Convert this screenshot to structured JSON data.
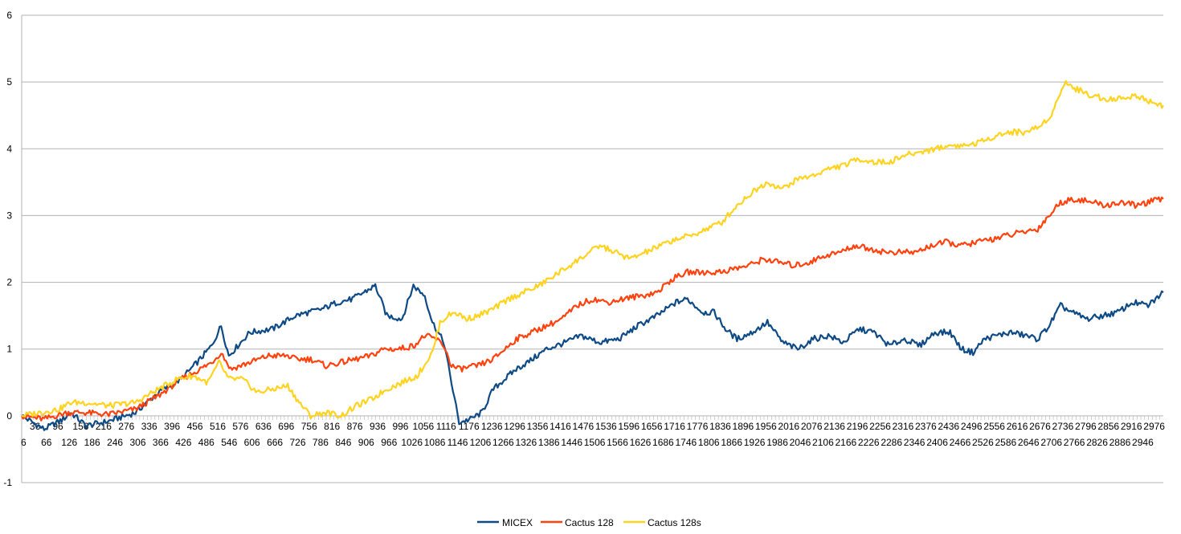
{
  "chart_data": {
    "type": "line",
    "title": "",
    "xlabel": "",
    "ylabel": "",
    "ylim": [
      -1,
      6
    ],
    "yticks": [
      "-1",
      "0",
      "1",
      "2",
      "3",
      "4",
      "5",
      "6"
    ],
    "grid": "horizontal",
    "legend_position": "bottom",
    "x_tick_labels_row1": [
      "36",
      "96",
      "156",
      "216",
      "276",
      "336",
      "396",
      "456",
      "516",
      "576",
      "636",
      "696",
      "756",
      "816",
      "876",
      "936",
      "996",
      "1056",
      "1116",
      "1176",
      "1236",
      "1296",
      "1356",
      "1416",
      "1476",
      "1536",
      "1596",
      "1656",
      "1716",
      "1776",
      "1836",
      "1896",
      "1956",
      "2016",
      "2076",
      "2136",
      "2196",
      "2256",
      "2316",
      "2376",
      "2436",
      "2496",
      "2556",
      "2616",
      "2676",
      "2736",
      "2796",
      "2856",
      "2916",
      "2976"
    ],
    "x_tick_labels_row2": [
      "6",
      "66",
      "126",
      "186",
      "246",
      "306",
      "366",
      "426",
      "486",
      "546",
      "606",
      "666",
      "726",
      "786",
      "846",
      "906",
      "966",
      "1026",
      "1086",
      "1146",
      "1206",
      "1266",
      "1326",
      "1386",
      "1446",
      "1506",
      "1566",
      "1626",
      "1686",
      "1746",
      "1806",
      "1866",
      "1926",
      "1986",
      "2046",
      "2106",
      "2166",
      "2226",
      "2286",
      "2346",
      "2406",
      "2466",
      "2526",
      "2586",
      "2646",
      "2706",
      "2766",
      "2826",
      "2886",
      "2946"
    ],
    "x_range": [
      1,
      3000
    ],
    "series": [
      {
        "name": "MICEX",
        "color": "#0e4a86",
        "points": [
          [
            1,
            0
          ],
          [
            60,
            -0.2
          ],
          [
            110,
            -0.05
          ],
          [
            130,
            0.05
          ],
          [
            170,
            -0.15
          ],
          [
            230,
            -0.08
          ],
          [
            300,
            0.05
          ],
          [
            360,
            0.35
          ],
          [
            420,
            0.55
          ],
          [
            470,
            0.85
          ],
          [
            500,
            1.05
          ],
          [
            525,
            1.35
          ],
          [
            545,
            0.9
          ],
          [
            600,
            1.25
          ],
          [
            660,
            1.3
          ],
          [
            720,
            1.5
          ],
          [
            790,
            1.6
          ],
          [
            830,
            1.7
          ],
          [
            870,
            1.75
          ],
          [
            900,
            1.85
          ],
          [
            930,
            1.95
          ],
          [
            960,
            1.5
          ],
          [
            1000,
            1.45
          ],
          [
            1030,
            1.95
          ],
          [
            1060,
            1.8
          ],
          [
            1080,
            1.4
          ],
          [
            1110,
            1.1
          ],
          [
            1130,
            0.5
          ],
          [
            1150,
            -0.1
          ],
          [
            1180,
            -0.05
          ],
          [
            1210,
            0.05
          ],
          [
            1240,
            0.4
          ],
          [
            1270,
            0.55
          ],
          [
            1300,
            0.7
          ],
          [
            1330,
            0.8
          ],
          [
            1380,
            1.0
          ],
          [
            1430,
            1.1
          ],
          [
            1470,
            1.2
          ],
          [
            1520,
            1.1
          ],
          [
            1570,
            1.15
          ],
          [
            1620,
            1.35
          ],
          [
            1670,
            1.5
          ],
          [
            1720,
            1.7
          ],
          [
            1750,
            1.75
          ],
          [
            1790,
            1.55
          ],
          [
            1820,
            1.55
          ],
          [
            1850,
            1.3
          ],
          [
            1880,
            1.15
          ],
          [
            1920,
            1.25
          ],
          [
            1960,
            1.4
          ],
          [
            2000,
            1.1
          ],
          [
            2040,
            1.0
          ],
          [
            2080,
            1.15
          ],
          [
            2120,
            1.2
          ],
          [
            2160,
            1.1
          ],
          [
            2200,
            1.3
          ],
          [
            2240,
            1.25
          ],
          [
            2280,
            1.05
          ],
          [
            2320,
            1.15
          ],
          [
            2360,
            1.05
          ],
          [
            2400,
            1.25
          ],
          [
            2440,
            1.25
          ],
          [
            2470,
            1.0
          ],
          [
            2500,
            0.95
          ],
          [
            2530,
            1.15
          ],
          [
            2560,
            1.2
          ],
          [
            2600,
            1.25
          ],
          [
            2640,
            1.2
          ],
          [
            2670,
            1.15
          ],
          [
            2700,
            1.35
          ],
          [
            2730,
            1.65
          ],
          [
            2760,
            1.55
          ],
          [
            2800,
            1.45
          ],
          [
            2840,
            1.5
          ],
          [
            2880,
            1.55
          ],
          [
            2920,
            1.7
          ],
          [
            2960,
            1.65
          ],
          [
            3000,
            1.85
          ]
        ]
      },
      {
        "name": "Cactus 128",
        "color": "#ff420e",
        "points": [
          [
            1,
            0
          ],
          [
            60,
            -0.05
          ],
          [
            120,
            0.05
          ],
          [
            160,
            0.05
          ],
          [
            230,
            0.02
          ],
          [
            300,
            0.1
          ],
          [
            360,
            0.3
          ],
          [
            420,
            0.55
          ],
          [
            470,
            0.7
          ],
          [
            500,
            0.8
          ],
          [
            525,
            0.95
          ],
          [
            550,
            0.7
          ],
          [
            600,
            0.8
          ],
          [
            650,
            0.9
          ],
          [
            700,
            0.9
          ],
          [
            720,
            0.85
          ],
          [
            760,
            0.85
          ],
          [
            800,
            0.75
          ],
          [
            840,
            0.8
          ],
          [
            880,
            0.85
          ],
          [
            920,
            0.9
          ],
          [
            950,
            1.0
          ],
          [
            990,
            1.0
          ],
          [
            1030,
            1.05
          ],
          [
            1060,
            1.2
          ],
          [
            1090,
            1.15
          ],
          [
            1110,
            1.05
          ],
          [
            1130,
            0.75
          ],
          [
            1150,
            0.7
          ],
          [
            1200,
            0.75
          ],
          [
            1240,
            0.85
          ],
          [
            1270,
            1.0
          ],
          [
            1300,
            1.15
          ],
          [
            1340,
            1.25
          ],
          [
            1380,
            1.35
          ],
          [
            1420,
            1.45
          ],
          [
            1460,
            1.65
          ],
          [
            1500,
            1.75
          ],
          [
            1540,
            1.7
          ],
          [
            1580,
            1.75
          ],
          [
            1630,
            1.8
          ],
          [
            1670,
            1.85
          ],
          [
            1710,
            2.05
          ],
          [
            1750,
            2.15
          ],
          [
            1790,
            2.15
          ],
          [
            1830,
            2.15
          ],
          [
            1870,
            2.2
          ],
          [
            1910,
            2.25
          ],
          [
            1950,
            2.35
          ],
          [
            1990,
            2.3
          ],
          [
            2030,
            2.25
          ],
          [
            2070,
            2.3
          ],
          [
            2110,
            2.4
          ],
          [
            2150,
            2.45
          ],
          [
            2190,
            2.55
          ],
          [
            2230,
            2.5
          ],
          [
            2270,
            2.45
          ],
          [
            2310,
            2.45
          ],
          [
            2350,
            2.45
          ],
          [
            2390,
            2.55
          ],
          [
            2430,
            2.6
          ],
          [
            2470,
            2.55
          ],
          [
            2510,
            2.6
          ],
          [
            2550,
            2.65
          ],
          [
            2590,
            2.7
          ],
          [
            2630,
            2.75
          ],
          [
            2670,
            2.8
          ],
          [
            2700,
            3.0
          ],
          [
            2730,
            3.2
          ],
          [
            2770,
            3.25
          ],
          [
            2810,
            3.2
          ],
          [
            2850,
            3.15
          ],
          [
            2890,
            3.2
          ],
          [
            2930,
            3.15
          ],
          [
            2960,
            3.2
          ],
          [
            3000,
            3.25
          ]
        ]
      },
      {
        "name": "Cactus 128s",
        "color": "#ffd320",
        "points": [
          [
            1,
            0
          ],
          [
            50,
            0.05
          ],
          [
            100,
            0.1
          ],
          [
            130,
            0.2
          ],
          [
            170,
            0.2
          ],
          [
            230,
            0.15
          ],
          [
            300,
            0.2
          ],
          [
            360,
            0.4
          ],
          [
            410,
            0.55
          ],
          [
            450,
            0.6
          ],
          [
            470,
            0.55
          ],
          [
            490,
            0.5
          ],
          [
            520,
            0.8
          ],
          [
            545,
            0.55
          ],
          [
            580,
            0.55
          ],
          [
            620,
            0.35
          ],
          [
            660,
            0.4
          ],
          [
            700,
            0.45
          ],
          [
            730,
            0.2
          ],
          [
            760,
            0.0
          ],
          [
            800,
            0.05
          ],
          [
            840,
            0.0
          ],
          [
            880,
            0.15
          ],
          [
            920,
            0.25
          ],
          [
            960,
            0.4
          ],
          [
            1000,
            0.5
          ],
          [
            1040,
            0.6
          ],
          [
            1080,
            0.95
          ],
          [
            1100,
            1.4
          ],
          [
            1120,
            1.5
          ],
          [
            1140,
            1.55
          ],
          [
            1170,
            1.45
          ],
          [
            1200,
            1.5
          ],
          [
            1240,
            1.6
          ],
          [
            1280,
            1.75
          ],
          [
            1320,
            1.85
          ],
          [
            1360,
            1.95
          ],
          [
            1400,
            2.1
          ],
          [
            1440,
            2.25
          ],
          [
            1480,
            2.4
          ],
          [
            1520,
            2.55
          ],
          [
            1560,
            2.45
          ],
          [
            1600,
            2.35
          ],
          [
            1640,
            2.45
          ],
          [
            1680,
            2.55
          ],
          [
            1720,
            2.65
          ],
          [
            1760,
            2.7
          ],
          [
            1800,
            2.8
          ],
          [
            1840,
            2.9
          ],
          [
            1880,
            3.15
          ],
          [
            1920,
            3.35
          ],
          [
            1960,
            3.5
          ],
          [
            2000,
            3.4
          ],
          [
            2040,
            3.55
          ],
          [
            2080,
            3.6
          ],
          [
            2120,
            3.7
          ],
          [
            2160,
            3.75
          ],
          [
            2200,
            3.85
          ],
          [
            2240,
            3.8
          ],
          [
            2280,
            3.8
          ],
          [
            2320,
            3.9
          ],
          [
            2360,
            3.95
          ],
          [
            2400,
            4.0
          ],
          [
            2440,
            4.05
          ],
          [
            2480,
            4.05
          ],
          [
            2520,
            4.1
          ],
          [
            2560,
            4.2
          ],
          [
            2600,
            4.25
          ],
          [
            2640,
            4.25
          ],
          [
            2680,
            4.35
          ],
          [
            2710,
            4.55
          ],
          [
            2740,
            5.0
          ],
          [
            2770,
            4.9
          ],
          [
            2810,
            4.8
          ],
          [
            2850,
            4.75
          ],
          [
            2890,
            4.75
          ],
          [
            2930,
            4.8
          ],
          [
            2970,
            4.7
          ],
          [
            3000,
            4.65
          ]
        ]
      }
    ]
  }
}
